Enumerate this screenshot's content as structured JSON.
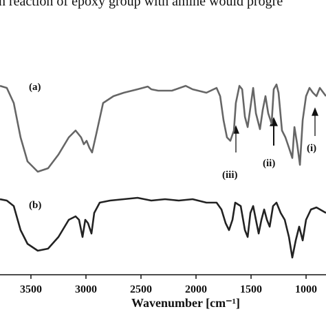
{
  "chart_data": {
    "type": "line",
    "caption_fragment": "n reaction of epoxy group with amine would progre",
    "xlabel": "Wavenumber [cm⁻¹]",
    "xlim": [
      3781,
      819
    ],
    "xticks": [
      3500,
      3000,
      2500,
      2000,
      1500,
      1000
    ],
    "ylim": [
      0,
      300
    ],
    "series": [
      {
        "color": "#666666",
        "x": [
          3781,
          3719,
          3656,
          3594,
          3531,
          3438,
          3344,
          3250,
          3156,
          3094,
          3044,
          3019,
          2994,
          2969,
          2944,
          2906,
          2844,
          2750,
          2656,
          2531,
          2438,
          2406,
          2344,
          2219,
          2094,
          2031,
          1906,
          1813,
          1781,
          1750,
          1719,
          1688,
          1656,
          1638,
          1606,
          1581,
          1556,
          1531,
          1500,
          1481,
          1456,
          1419,
          1394,
          1369,
          1344,
          1313,
          1294,
          1269,
          1250,
          1219,
          1188,
          1156,
          1125,
          1106,
          1081,
          1056,
          1031,
          1000,
          969,
          938,
          906,
          875,
          819
        ],
        "values": [
          275,
          272,
          250,
          200,
          165,
          150,
          155,
          175,
          200,
          210,
          200,
          190,
          195,
          185,
          178,
          205,
          250,
          260,
          265,
          270,
          274,
          270,
          268,
          268,
          275,
          270,
          265,
          272,
          260,
          225,
          200,
          195,
          210,
          250,
          275,
          270,
          230,
          215,
          250,
          272,
          235,
          212,
          240,
          260,
          235,
          220,
          270,
          277,
          265,
          210,
          200,
          185,
          170,
          215,
          190,
          160,
          225,
          260,
          272,
          265,
          260,
          272,
          260
        ]
      },
      {
        "color": "#222222",
        "x": [
          3781,
          3719,
          3656,
          3594,
          3531,
          3438,
          3344,
          3250,
          3156,
          3094,
          3063,
          3031,
          3006,
          2981,
          2950,
          2925,
          2875,
          2781,
          2656,
          2531,
          2406,
          2281,
          2156,
          2031,
          1906,
          1813,
          1769,
          1731,
          1700,
          1669,
          1644,
          1594,
          1556,
          1531,
          1506,
          1481,
          1456,
          1431,
          1406,
          1381,
          1356,
          1331,
          1300,
          1269,
          1231,
          1194,
          1156,
          1125,
          1094,
          1063,
          1031,
          1000,
          956,
          906,
          819
        ],
        "values": [
          110,
          108,
          100,
          65,
          45,
          35,
          38,
          55,
          80,
          85,
          80,
          55,
          80,
          75,
          60,
          90,
          105,
          108,
          110,
          112,
          108,
          110,
          108,
          110,
          105,
          105,
          95,
          75,
          65,
          80,
          105,
          100,
          65,
          55,
          90,
          100,
          80,
          60,
          80,
          95,
          80,
          70,
          100,
          105,
          90,
          80,
          55,
          25,
          50,
          70,
          50,
          80,
          95,
          98,
          90
        ]
      }
    ],
    "annotations": [
      "(a)",
      "(b)",
      "(iii)",
      "(ii)",
      "(i)"
    ]
  }
}
